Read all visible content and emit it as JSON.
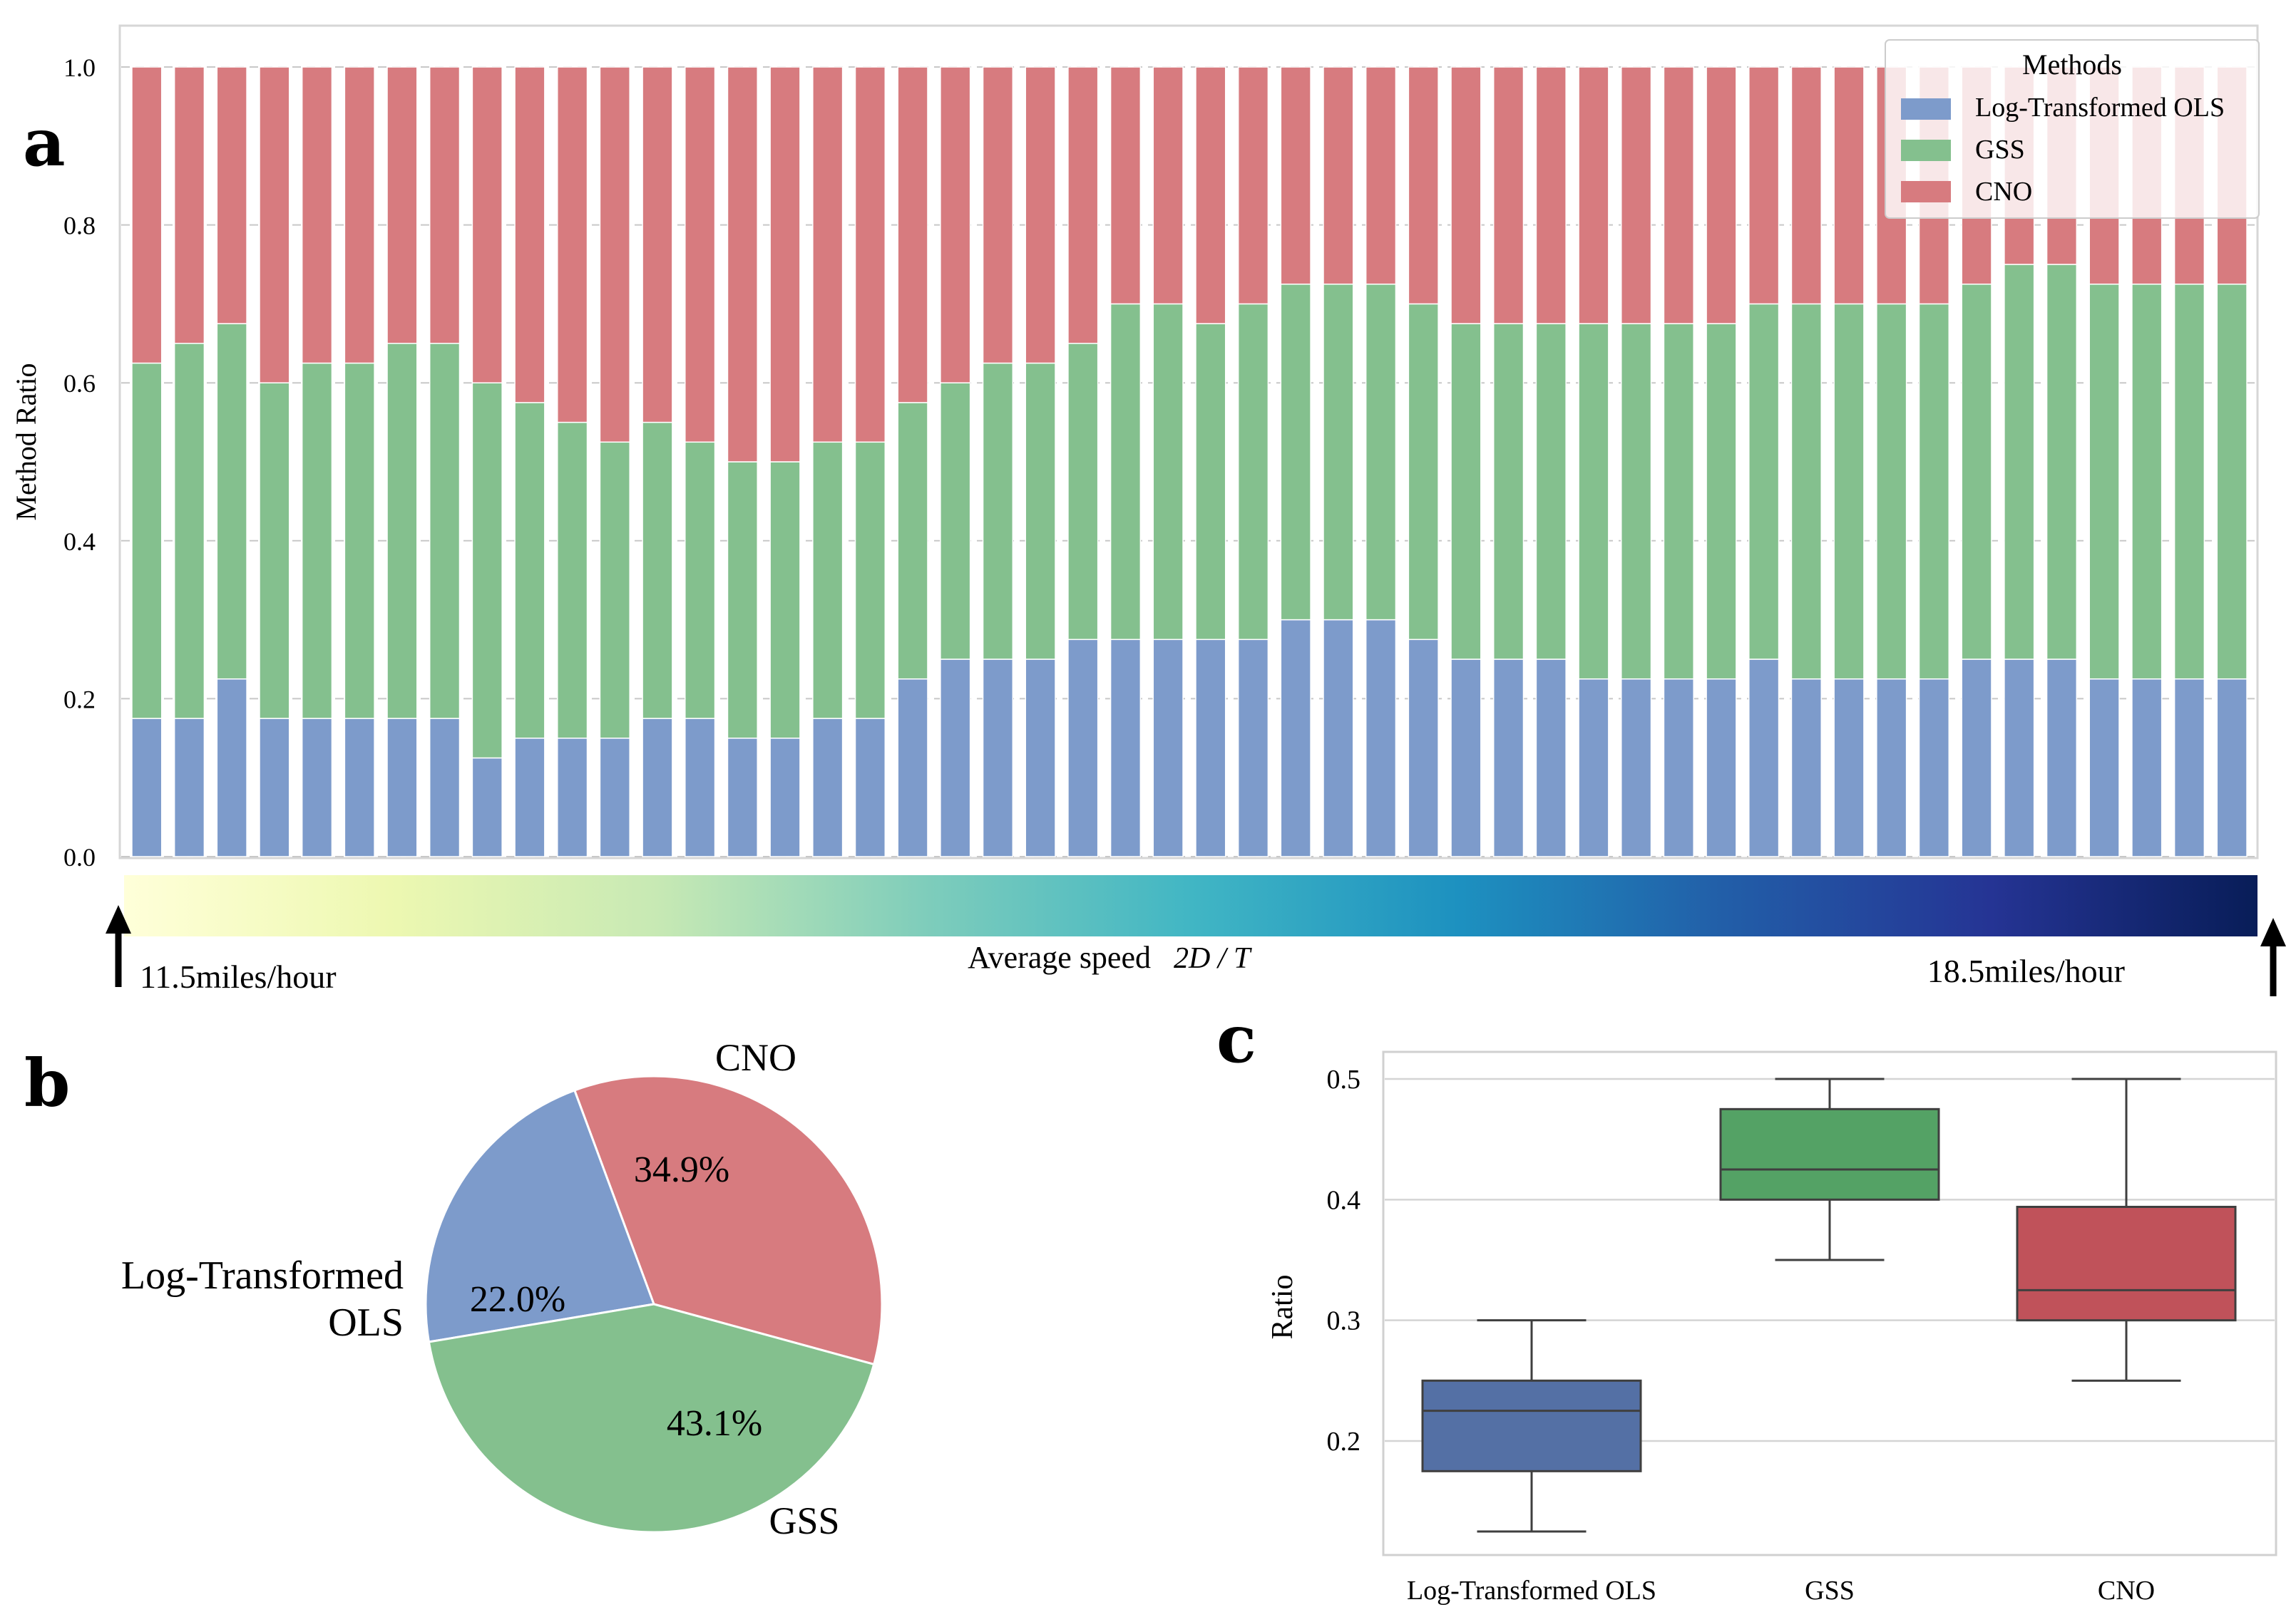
{
  "chart_data": [
    {
      "panel": "a",
      "type": "bar",
      "stacked": true,
      "ylabel": "Method Ratio",
      "ylim": [
        0,
        1.0
      ],
      "yticks": [
        "0.0",
        "0.2",
        "0.4",
        "0.6",
        "0.8",
        "1.0"
      ],
      "grid": true,
      "legend": {
        "title": "Methods",
        "position": "top-right",
        "entries": [
          "Log-Transformed OLS",
          "GSS",
          "CNO"
        ]
      },
      "series": [
        {
          "name": "Log-Transformed OLS",
          "color": "#7d9bcb",
          "values": [
            0.175,
            0.175,
            0.225,
            0.175,
            0.175,
            0.175,
            0.175,
            0.175,
            0.125,
            0.15,
            0.15,
            0.15,
            0.175,
            0.175,
            0.15,
            0.15,
            0.175,
            0.175,
            0.225,
            0.25,
            0.25,
            0.25,
            0.275,
            0.275,
            0.275,
            0.275,
            0.275,
            0.3,
            0.3,
            0.3,
            0.275,
            0.25,
            0.25,
            0.25,
            0.225,
            0.225,
            0.225,
            0.225,
            0.25,
            0.225,
            0.225,
            0.225,
            0.225,
            0.25,
            0.25,
            0.25,
            0.225,
            0.225,
            0.225,
            0.225
          ]
        },
        {
          "name": "GSS",
          "color": "#84c08e",
          "values": [
            0.45,
            0.475,
            0.45,
            0.425,
            0.45,
            0.45,
            0.475,
            0.475,
            0.475,
            0.425,
            0.4,
            0.375,
            0.375,
            0.35,
            0.35,
            0.35,
            0.35,
            0.35,
            0.35,
            0.35,
            0.375,
            0.375,
            0.375,
            0.425,
            0.425,
            0.4,
            0.425,
            0.425,
            0.425,
            0.425,
            0.425,
            0.425,
            0.425,
            0.425,
            0.45,
            0.45,
            0.45,
            0.45,
            0.45,
            0.475,
            0.475,
            0.475,
            0.475,
            0.475,
            0.5,
            0.5,
            0.5,
            0.5,
            0.5,
            0.5
          ]
        },
        {
          "name": "CNO",
          "color": "#d77b7f",
          "values": [
            0.375,
            0.35,
            0.325,
            0.4,
            0.375,
            0.375,
            0.35,
            0.35,
            0.4,
            0.425,
            0.45,
            0.475,
            0.45,
            0.475,
            0.5,
            0.5,
            0.475,
            0.475,
            0.425,
            0.4,
            0.375,
            0.375,
            0.35,
            0.3,
            0.3,
            0.325,
            0.3,
            0.275,
            0.275,
            0.275,
            0.3,
            0.325,
            0.325,
            0.325,
            0.325,
            0.325,
            0.325,
            0.325,
            0.3,
            0.3,
            0.3,
            0.3,
            0.3,
            0.275,
            0.25,
            0.25,
            0.275,
            0.275,
            0.275,
            0.275
          ]
        }
      ],
      "colorbar": {
        "label": "Average speed",
        "label_math": "2D / T",
        "min_label": "11.5miles/hour",
        "max_label": "18.5miles/hour",
        "colors": [
          "#ffffd9",
          "#edf8b1",
          "#c7e9b4",
          "#7fcdbb",
          "#41b6c4",
          "#1d91c0",
          "#225ea8",
          "#253494",
          "#081d58"
        ]
      }
    },
    {
      "panel": "b",
      "type": "pie",
      "slices": [
        {
          "label": "CNO",
          "value": 34.9,
          "pct_text": "34.9%",
          "color": "#d77b7f"
        },
        {
          "label": "GSS",
          "value": 43.1,
          "pct_text": "43.1%",
          "color": "#84c08e"
        },
        {
          "label_lines": [
            "Log-Transformed",
            "OLS"
          ],
          "value": 22.0,
          "pct_text": "22.0%",
          "color": "#7d9bcb"
        }
      ]
    },
    {
      "panel": "c",
      "type": "box",
      "ylabel": "Ratio",
      "ylim": [
        0.1,
        0.52
      ],
      "yticks": [
        "0.2",
        "0.3",
        "0.4",
        "0.5"
      ],
      "grid": true,
      "boxes": [
        {
          "category": "Log-Transformed OLS",
          "whisker_low": 0.125,
          "q1": 0.175,
          "median": 0.225,
          "q3": 0.25,
          "whisker_high": 0.3,
          "color": "#5470a5"
        },
        {
          "category": "GSS",
          "whisker_low": 0.35,
          "q1": 0.4,
          "median": 0.425,
          "q3": 0.475,
          "whisker_high": 0.5,
          "color": "#54a265"
        },
        {
          "category": "CNO",
          "whisker_low": 0.25,
          "q1": 0.3,
          "median": 0.325,
          "q3": 0.394,
          "whisker_high": 0.5,
          "color": "#c0525a"
        }
      ]
    }
  ],
  "panel_labels": {
    "a": "a",
    "b": "b",
    "c": "c"
  }
}
